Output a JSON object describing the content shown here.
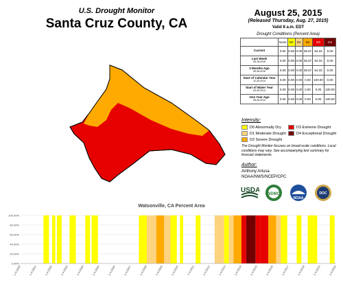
{
  "header": {
    "subtitle": "U.S. Drought Monitor",
    "title": "Santa Cruz County, CA",
    "date": "August 25, 2015",
    "released": "(Released Thursday, Aug. 27, 2015)",
    "valid": "Valid 8 a.m. EDT"
  },
  "colors": {
    "D0": "#ffff00",
    "D1": "#fcd37f",
    "D2": "#ffaa00",
    "D3": "#e60000",
    "D4": "#730000",
    "none": "#ffffff"
  },
  "conditions_table": {
    "caption": "Drought Conditions (Percent Area)",
    "columns": [
      "None",
      "D0",
      "D1",
      "D2",
      "D3",
      "D4"
    ],
    "rows": [
      {
        "label": "Current",
        "sub": "",
        "values": [
          "0.00",
          "0.00",
          "0.00",
          "35.67",
          "64.33",
          "0.00"
        ]
      },
      {
        "label": "Last Week",
        "sub": "08-18-2015",
        "values": [
          "0.00",
          "0.00",
          "0.00",
          "35.67",
          "64.33",
          "0.00"
        ]
      },
      {
        "label": "3 Months Ago",
        "sub": "05-26-2015",
        "values": [
          "0.00",
          "0.00",
          "0.00",
          "35.67",
          "64.33",
          "0.00"
        ]
      },
      {
        "label": "Start of Calendar Year",
        "sub": "12-30-2014",
        "values": [
          "0.00",
          "0.00",
          "0.00",
          "0.00",
          "100.00",
          "0.00"
        ]
      },
      {
        "label": "Start of Water Year",
        "sub": "09-30-2014",
        "values": [
          "0.00",
          "0.00",
          "0.00",
          "0.00",
          "0.00",
          "100.00"
        ]
      },
      {
        "label": "One Year Ago",
        "sub": "08-26-2014",
        "values": [
          "0.00",
          "0.00",
          "0.00",
          "0.00",
          "0.00",
          "100.00"
        ]
      }
    ]
  },
  "legend": {
    "heading": "Intensity:",
    "items": [
      {
        "code": "D0",
        "label": "D0 Abnormally Dry"
      },
      {
        "code": "D1",
        "label": "D1 Moderate Drought"
      },
      {
        "code": "D2",
        "label": "D2 Severe Drought"
      },
      {
        "code": "D3",
        "label": "D3 Extreme Drought"
      },
      {
        "code": "D4",
        "label": "D4 Exceptional Drought"
      }
    ]
  },
  "note": "The Drought Monitor focuses on broad-scale conditions. Local conditions may vary. See accompanying text summary for forecast statements.",
  "author": {
    "heading": "Author:",
    "name": "Anthony Artusa",
    "org": "NOAA/NWS/NCEP/CPC"
  },
  "logos": [
    {
      "name": "usda-logo",
      "text": "USDA"
    },
    {
      "name": "ndmc-logo",
      "text": "NDMC"
    },
    {
      "name": "noaa-logo",
      "text": "NOAA"
    },
    {
      "name": "doc-logo",
      "text": "DOC"
    }
  ],
  "chart_data": {
    "type": "area",
    "title": "Watsonville, CA Percent Area",
    "ylim": [
      0,
      100
    ],
    "yticks": [
      "0.00%",
      "20.00%",
      "40.00%",
      "60.00%",
      "80.00%",
      "100.00%"
    ],
    "xticks": [
      "1-4-2000",
      "1-4-2001",
      "1-4-2002",
      "1-4-2003",
      "1-4-2004",
      "1-4-2005",
      "1-4-2006",
      "1-4-2007",
      "1-4-2008",
      "1-4-2009",
      "1-4-2010",
      "1-4-2011",
      "1-4-2012",
      "1-4-2013",
      "1-4-2014",
      "1-4-2015",
      "1-4-2016",
      "1-4-2017",
      "1-4-2018",
      "1-4-2019",
      "1-4-2020"
    ],
    "x_start_year": 2000,
    "x_end_year": 2020,
    "segments": [
      {
        "start": 2001.45,
        "end": 2001.8,
        "category": "D0"
      },
      {
        "start": 2002.0,
        "end": 2002.2,
        "category": "D0"
      },
      {
        "start": 2002.3,
        "end": 2002.6,
        "category": "D0"
      },
      {
        "start": 2003.1,
        "end": 2003.5,
        "category": "D0"
      },
      {
        "start": 2004.1,
        "end": 2004.4,
        "category": "D0"
      },
      {
        "start": 2004.5,
        "end": 2004.9,
        "category": "D0"
      },
      {
        "start": 2007.5,
        "end": 2008.0,
        "category": "D0"
      },
      {
        "start": 2008.0,
        "end": 2008.6,
        "category": "D1"
      },
      {
        "start": 2008.6,
        "end": 2009.1,
        "category": "D2"
      },
      {
        "start": 2009.1,
        "end": 2009.5,
        "category": "D1"
      },
      {
        "start": 2009.5,
        "end": 2009.9,
        "category": "D0"
      },
      {
        "start": 2010.1,
        "end": 2010.3,
        "category": "D0"
      },
      {
        "start": 2011.1,
        "end": 2011.4,
        "category": "D0"
      },
      {
        "start": 2012.3,
        "end": 2012.9,
        "category": "D1"
      },
      {
        "start": 2012.9,
        "end": 2013.2,
        "category": "D0"
      },
      {
        "start": 2013.2,
        "end": 2013.5,
        "category": "D1"
      },
      {
        "start": 2013.5,
        "end": 2014.0,
        "category": "D2"
      },
      {
        "start": 2014.0,
        "end": 2014.3,
        "category": "D3"
      },
      {
        "start": 2014.3,
        "end": 2014.9,
        "category": "D4"
      },
      {
        "start": 2014.9,
        "end": 2015.2,
        "category": "D3"
      },
      {
        "start": 2015.2,
        "end": 2015.7,
        "category": "D3"
      },
      {
        "start": 2015.7,
        "end": 2016.2,
        "category": "D2"
      },
      {
        "start": 2016.2,
        "end": 2016.5,
        "category": "D1"
      },
      {
        "start": 2016.5,
        "end": 2016.9,
        "category": "D0"
      },
      {
        "start": 2017.5,
        "end": 2017.8,
        "category": "D0"
      },
      {
        "start": 2018.2,
        "end": 2018.8,
        "category": "D0"
      },
      {
        "start": 2019.6,
        "end": 2019.9,
        "category": "D0"
      }
    ]
  }
}
